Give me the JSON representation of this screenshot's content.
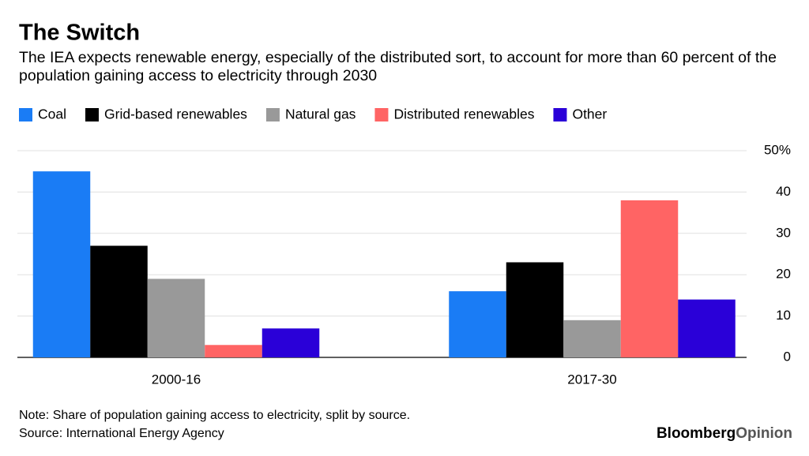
{
  "chart_data": {
    "type": "bar",
    "title": "The Switch",
    "subtitle": "The IEA expects renewable energy, especially of the distributed sort, to account for more than 60 percent of the population gaining access to electricity through 2030",
    "categories": [
      "2000-16",
      "2017-30"
    ],
    "series": [
      {
        "name": "Coal",
        "color": "#1a7cf5",
        "values": [
          45,
          16
        ]
      },
      {
        "name": "Grid-based renewables",
        "color": "#000000",
        "values": [
          27,
          23
        ]
      },
      {
        "name": "Natural gas",
        "color": "#999999",
        "values": [
          19,
          9
        ]
      },
      {
        "name": "Distributed renewables",
        "color": "#ff6464",
        "values": [
          3,
          38
        ]
      },
      {
        "name": "Other",
        "color": "#2a00d8",
        "values": [
          7,
          14
        ]
      }
    ],
    "ylim": [
      0,
      50
    ],
    "yticks": [
      0,
      10,
      20,
      30,
      40,
      {
        "value": 50,
        "label": "50%"
      }
    ],
    "grid": true,
    "legend": "top",
    "note": "Note: Share of population gaining access to electricity, split by source.",
    "source": "Source: International Energy Agency",
    "logo": {
      "brand": "Bloomberg",
      "section": "Opinion"
    }
  }
}
